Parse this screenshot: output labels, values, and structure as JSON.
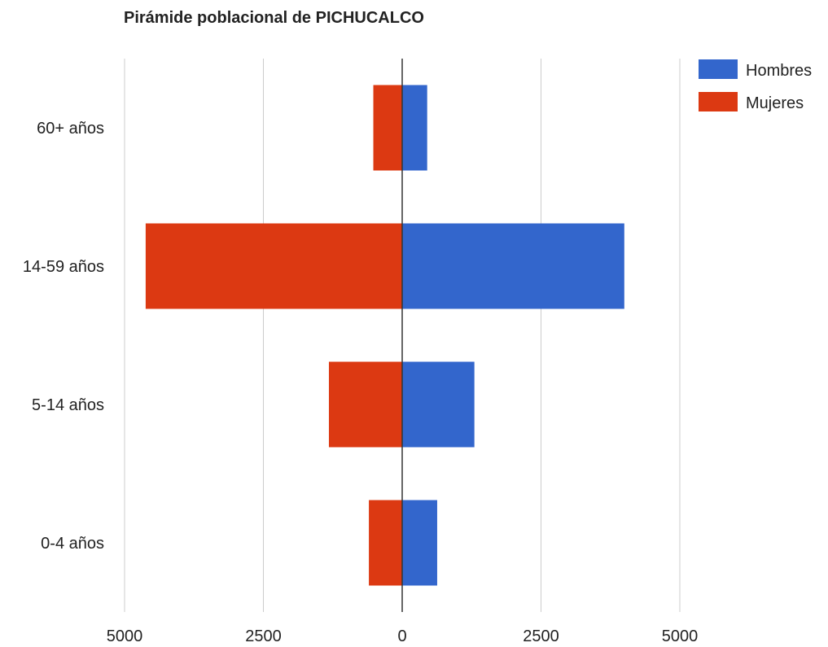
{
  "chart_data": {
    "type": "bar",
    "orientation": "horizontal",
    "title": "Pirámide poblacional de PICHUCALCO",
    "categories": [
      "60+ años",
      "14-59 años",
      "5-14 años",
      "0-4 años"
    ],
    "series": [
      {
        "name": "Hombres",
        "color": "#3366cc",
        "values": [
          450,
          4000,
          1300,
          630
        ]
      },
      {
        "name": "Mujeres",
        "color": "#dc3912",
        "values": [
          -520,
          -4620,
          -1320,
          -600
        ]
      }
    ],
    "xlim": [
      -5000,
      5000
    ],
    "x_ticks": [
      -5000,
      -2500,
      0,
      2500,
      5000
    ],
    "x_tick_labels": [
      "5000",
      "2500",
      "0",
      "2500",
      "5000"
    ],
    "xlabel": "",
    "ylabel": "",
    "grid": true,
    "legend_position": "top-right"
  }
}
